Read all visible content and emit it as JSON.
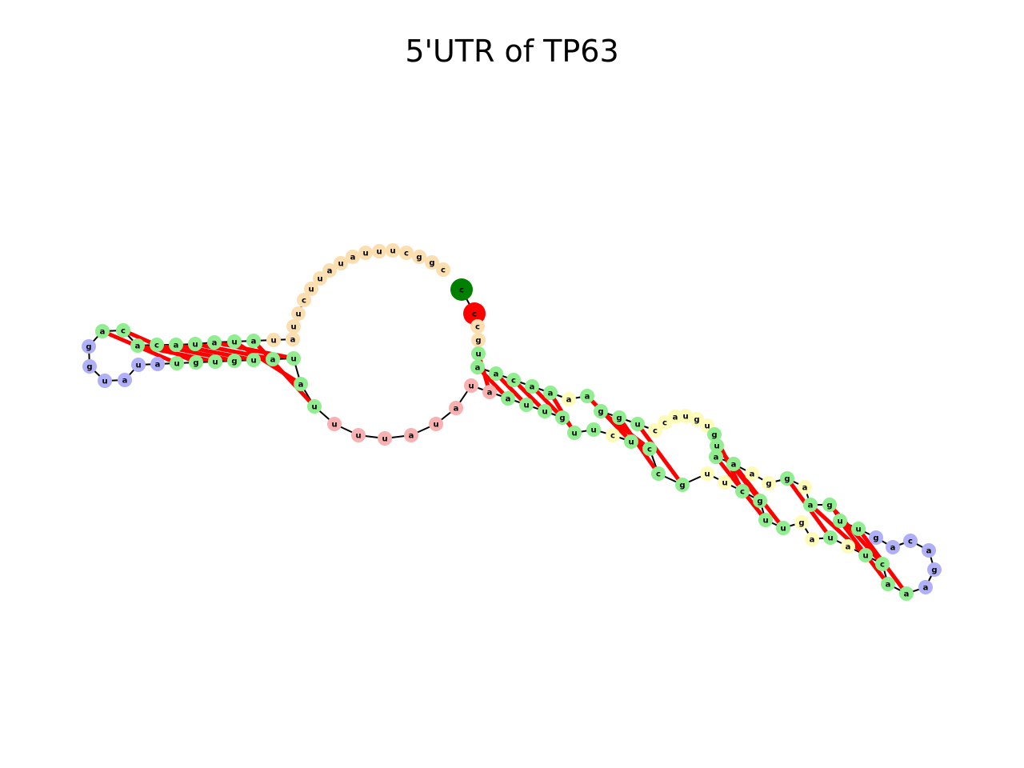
{
  "title": "5'UTR of TP63",
  "colors": {
    "stem": "#90ee90",
    "hairpin_loop": "#b0b0f8",
    "multi_loop": "#fcdfb0",
    "interior_loop": "#fffbb8",
    "exterior": "#f8b0b0",
    "start_marker": "#008000",
    "end_marker": "#ff0000",
    "backbone": "#000000",
    "pair_bond": "#ff0000"
  },
  "diagram": {
    "nodes": [
      {
        "id": "n1",
        "label": "c",
        "type": "start_marker"
      },
      {
        "id": "n2",
        "label": "c",
        "type": "end_marker"
      },
      {
        "id": "n3",
        "label": "c",
        "type": "multi_loop"
      },
      {
        "id": "n4",
        "label": "g",
        "type": "multi_loop"
      },
      {
        "id": "n5",
        "label": "u",
        "type": "stem"
      },
      {
        "id": "n6",
        "label": "a",
        "type": "stem"
      },
      {
        "id": "n7",
        "label": "a",
        "type": "stem"
      },
      {
        "id": "n8",
        "label": "c",
        "type": "stem"
      },
      {
        "id": "n9",
        "label": "a",
        "type": "stem"
      },
      {
        "id": "n10",
        "label": "a",
        "type": "stem"
      },
      {
        "id": "n11",
        "label": "a",
        "type": "interior_loop"
      },
      {
        "id": "n12",
        "label": "a",
        "type": "stem"
      },
      {
        "id": "n13",
        "label": "g",
        "type": "stem"
      },
      {
        "id": "n14",
        "label": "g",
        "type": "stem"
      },
      {
        "id": "n15",
        "label": "u",
        "type": "stem"
      },
      {
        "id": "n16",
        "label": "c",
        "type": "interior_loop"
      },
      {
        "id": "n17",
        "label": "c",
        "type": "interior_loop"
      },
      {
        "id": "n18",
        "label": "a",
        "type": "interior_loop"
      },
      {
        "id": "n19",
        "label": "u",
        "type": "interior_loop"
      },
      {
        "id": "n20",
        "label": "g",
        "type": "interior_loop"
      },
      {
        "id": "n21",
        "label": "u",
        "type": "interior_loop"
      },
      {
        "id": "n22",
        "label": "g",
        "type": "stem"
      },
      {
        "id": "n23",
        "label": "u",
        "type": "stem"
      },
      {
        "id": "n24",
        "label": "a",
        "type": "stem"
      },
      {
        "id": "n25",
        "label": "a",
        "type": "stem"
      },
      {
        "id": "n26",
        "label": "a",
        "type": "interior_loop"
      },
      {
        "id": "n27",
        "label": "g",
        "type": "interior_loop"
      },
      {
        "id": "n28",
        "label": "g",
        "type": "stem"
      },
      {
        "id": "n29",
        "label": "a",
        "type": "interior_loop"
      },
      {
        "id": "n30",
        "label": "a",
        "type": "stem"
      },
      {
        "id": "n31",
        "label": "g",
        "type": "stem"
      },
      {
        "id": "n32",
        "label": "u",
        "type": "stem"
      },
      {
        "id": "n33",
        "label": "u",
        "type": "stem"
      },
      {
        "id": "n34",
        "label": "g",
        "type": "hairpin_loop"
      },
      {
        "id": "n35",
        "label": "a",
        "type": "hairpin_loop"
      },
      {
        "id": "n36",
        "label": "c",
        "type": "hairpin_loop"
      },
      {
        "id": "n37",
        "label": "a",
        "type": "hairpin_loop"
      },
      {
        "id": "n38",
        "label": "g",
        "type": "hairpin_loop"
      },
      {
        "id": "n39",
        "label": "a",
        "type": "hairpin_loop"
      },
      {
        "id": "n40",
        "label": "a",
        "type": "stem"
      },
      {
        "id": "n41",
        "label": "a",
        "type": "stem"
      },
      {
        "id": "n42",
        "label": "c",
        "type": "stem"
      },
      {
        "id": "n43",
        "label": "u",
        "type": "stem"
      },
      {
        "id": "n44",
        "label": "a",
        "type": "interior_loop"
      },
      {
        "id": "n45",
        "label": "u",
        "type": "stem"
      },
      {
        "id": "n46",
        "label": "a",
        "type": "interior_loop"
      },
      {
        "id": "n47",
        "label": "g",
        "type": "interior_loop"
      },
      {
        "id": "n48",
        "label": "u",
        "type": "stem"
      },
      {
        "id": "n49",
        "label": "u",
        "type": "stem"
      },
      {
        "id": "n50",
        "label": "g",
        "type": "stem"
      },
      {
        "id": "n51",
        "label": "c",
        "type": "stem"
      },
      {
        "id": "n52",
        "label": "u",
        "type": "interior_loop"
      },
      {
        "id": "n53",
        "label": "u",
        "type": "interior_loop"
      },
      {
        "id": "n54",
        "label": "g",
        "type": "stem"
      },
      {
        "id": "n55",
        "label": "c",
        "type": "stem"
      },
      {
        "id": "n56",
        "label": "c",
        "type": "stem"
      },
      {
        "id": "n57",
        "label": "u",
        "type": "stem"
      },
      {
        "id": "n58",
        "label": "c",
        "type": "interior_loop"
      },
      {
        "id": "n59",
        "label": "u",
        "type": "stem"
      },
      {
        "id": "n60",
        "label": "u",
        "type": "stem"
      },
      {
        "id": "n61",
        "label": "g",
        "type": "stem"
      },
      {
        "id": "n62",
        "label": "u",
        "type": "stem"
      },
      {
        "id": "n63",
        "label": "u",
        "type": "stem"
      },
      {
        "id": "n64",
        "label": "a",
        "type": "stem"
      },
      {
        "id": "n65",
        "label": "a",
        "type": "exterior"
      },
      {
        "id": "n66",
        "label": "u",
        "type": "exterior"
      },
      {
        "id": "n67",
        "label": "a",
        "type": "exterior"
      },
      {
        "id": "n68",
        "label": "u",
        "type": "exterior"
      },
      {
        "id": "n69",
        "label": "a",
        "type": "exterior"
      },
      {
        "id": "n70",
        "label": "u",
        "type": "exterior"
      },
      {
        "id": "n71",
        "label": "u",
        "type": "exterior"
      },
      {
        "id": "n72",
        "label": "u",
        "type": "exterior"
      },
      {
        "id": "n73",
        "label": "u",
        "type": "stem"
      },
      {
        "id": "n74",
        "label": "a",
        "type": "stem"
      },
      {
        "id": "n75",
        "label": "u",
        "type": "stem"
      },
      {
        "id": "n76",
        "label": "a",
        "type": "stem"
      },
      {
        "id": "n77",
        "label": "u",
        "type": "stem"
      },
      {
        "id": "n78",
        "label": "g",
        "type": "stem"
      },
      {
        "id": "n79",
        "label": "u",
        "type": "stem"
      },
      {
        "id": "n80",
        "label": "g",
        "type": "stem"
      },
      {
        "id": "n81",
        "label": "u",
        "type": "stem"
      },
      {
        "id": "n82",
        "label": "a",
        "type": "hairpin_loop"
      },
      {
        "id": "n83",
        "label": "u",
        "type": "hairpin_loop"
      },
      {
        "id": "n84",
        "label": "a",
        "type": "hairpin_loop"
      },
      {
        "id": "n85",
        "label": "u",
        "type": "hairpin_loop"
      },
      {
        "id": "n86",
        "label": "g",
        "type": "hairpin_loop"
      },
      {
        "id": "n87",
        "label": "g",
        "type": "hairpin_loop"
      },
      {
        "id": "n88",
        "label": "a",
        "type": "stem"
      },
      {
        "id": "n89",
        "label": "c",
        "type": "stem"
      },
      {
        "id": "n90",
        "label": "a",
        "type": "stem"
      },
      {
        "id": "n91",
        "label": "c",
        "type": "stem"
      },
      {
        "id": "n92",
        "label": "a",
        "type": "stem"
      },
      {
        "id": "n93",
        "label": "u",
        "type": "stem"
      },
      {
        "id": "n94",
        "label": "a",
        "type": "stem"
      },
      {
        "id": "n95",
        "label": "u",
        "type": "stem"
      },
      {
        "id": "n96",
        "label": "a",
        "type": "stem"
      },
      {
        "id": "n97",
        "label": "u",
        "type": "multi_loop"
      },
      {
        "id": "n98",
        "label": "a",
        "type": "multi_loop"
      },
      {
        "id": "n99",
        "label": "u",
        "type": "multi_loop"
      },
      {
        "id": "n100",
        "label": "u",
        "type": "multi_loop"
      },
      {
        "id": "n101",
        "label": "c",
        "type": "multi_loop"
      },
      {
        "id": "n102",
        "label": "u",
        "type": "multi_loop"
      },
      {
        "id": "n103",
        "label": "u",
        "type": "multi_loop"
      },
      {
        "id": "n104",
        "label": "a",
        "type": "multi_loop"
      },
      {
        "id": "n105",
        "label": "u",
        "type": "multi_loop"
      },
      {
        "id": "n106",
        "label": "a",
        "type": "multi_loop"
      },
      {
        "id": "n107",
        "label": "u",
        "type": "multi_loop"
      },
      {
        "id": "n108",
        "label": "u",
        "type": "multi_loop"
      },
      {
        "id": "n109",
        "label": "u",
        "type": "multi_loop"
      },
      {
        "id": "n110",
        "label": "c",
        "type": "multi_loop"
      },
      {
        "id": "n111",
        "label": "g",
        "type": "multi_loop"
      },
      {
        "id": "n112",
        "label": "g",
        "type": "multi_loop"
      },
      {
        "id": "n113",
        "label": "c",
        "type": "multi_loop"
      }
    ],
    "pairs": [
      [
        "n5",
        "n65"
      ],
      [
        "n6",
        "n64"
      ],
      [
        "n7",
        "n63"
      ],
      [
        "n8",
        "n62"
      ],
      [
        "n9",
        "n61"
      ],
      [
        "n10",
        "n60"
      ],
      [
        "n12",
        "n57"
      ],
      [
        "n13",
        "n56"
      ],
      [
        "n14",
        "n55"
      ],
      [
        "n15",
        "n54"
      ],
      [
        "n22",
        "n51"
      ],
      [
        "n23",
        "n50"
      ],
      [
        "n24",
        "n49"
      ],
      [
        "n25",
        "n48"
      ],
      [
        "n28",
        "n45"
      ],
      [
        "n30",
        "n43"
      ],
      [
        "n31",
        "n42"
      ],
      [
        "n32",
        "n41"
      ],
      [
        "n33",
        "n40"
      ],
      [
        "n73",
        "n96"
      ],
      [
        "n74",
        "n95"
      ],
      [
        "n75",
        "n94"
      ],
      [
        "n76",
        "n93"
      ],
      [
        "n77",
        "n92"
      ],
      [
        "n78",
        "n91"
      ],
      [
        "n79",
        "n90"
      ],
      [
        "n80",
        "n89"
      ],
      [
        "n81",
        "n88"
      ]
    ]
  }
}
